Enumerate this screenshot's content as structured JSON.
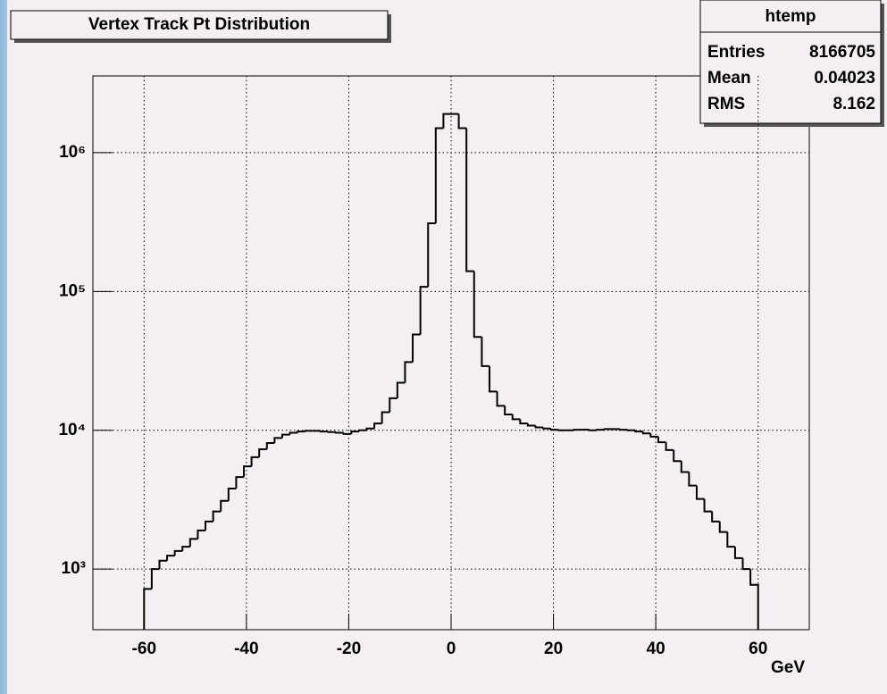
{
  "chart_data": {
    "type": "histogram",
    "title": "Vertex Track Pt Distribution",
    "x_label": "GeV",
    "bins": [
      -60,
      -58.5,
      -57,
      -55.5,
      -54,
      -52.5,
      -51,
      -49.5,
      -48,
      -46.5,
      -45,
      -43.5,
      -42,
      -40.5,
      -39,
      -37.5,
      -36,
      -34.5,
      -33,
      -31.5,
      -30,
      -28.5,
      -27,
      -25.5,
      -24,
      -22.5,
      -21,
      -19.5,
      -18,
      -16.5,
      -15,
      -13.5,
      -12,
      -10.5,
      -9,
      -7.5,
      -6,
      -4.5,
      -3,
      -1.5,
      0,
      1.5,
      3,
      4.5,
      6,
      7.5,
      9,
      10.5,
      12,
      13.5,
      15,
      16.5,
      18,
      19.5,
      21,
      22.5,
      24,
      25.5,
      27,
      28.5,
      30,
      31.5,
      33,
      34.5,
      36,
      37.5,
      39,
      40.5,
      42,
      43.5,
      45,
      46.5,
      48,
      49.5,
      51,
      52.5,
      54,
      55.5,
      57,
      58.5,
      60
    ],
    "values": [
      720,
      1000,
      1150,
      1250,
      1350,
      1450,
      1650,
      1900,
      2200,
      2600,
      3100,
      3800,
      4600,
      5500,
      6400,
      7300,
      8100,
      8800,
      9300,
      9600,
      9800,
      9900,
      9900,
      9800,
      9700,
      9600,
      9400,
      9800,
      10000,
      10300,
      11200,
      13500,
      17000,
      22000,
      31000,
      49000,
      108000,
      310000,
      1500000,
      1900000,
      1900000,
      1500000,
      140000,
      47000,
      29000,
      19000,
      15000,
      13000,
      12000,
      11200,
      10800,
      10500,
      10300,
      10100,
      10000,
      10000,
      10100,
      10100,
      10000,
      10100,
      10200,
      10200,
      10100,
      10000,
      9800,
      9500,
      9000,
      8200,
      7200,
      6000,
      5000,
      4000,
      3200,
      2600,
      2200,
      1850,
      1450,
      1200,
      1000,
      770
    ],
    "color": "#000000",
    "xlim": [
      -70,
      70
    ],
    "xticks": [
      -60,
      -40,
      -20,
      0,
      20,
      40,
      60
    ],
    "ylim": [
      366,
      3570000
    ],
    "logy": true,
    "yticks": [
      {
        "value": 1000,
        "label": "10³"
      },
      {
        "value": 10000,
        "label": "10⁴"
      },
      {
        "value": 100000,
        "label": "10⁵"
      },
      {
        "value": 1000000,
        "label": "10⁶"
      }
    ],
    "grid": true,
    "stats": {
      "name": "htemp",
      "rows": [
        {
          "label": "Entries",
          "value": 8166705
        },
        {
          "label": "Mean",
          "value": 0.04023
        },
        {
          "label": "RMS",
          "value": 8.162
        }
      ]
    }
  }
}
